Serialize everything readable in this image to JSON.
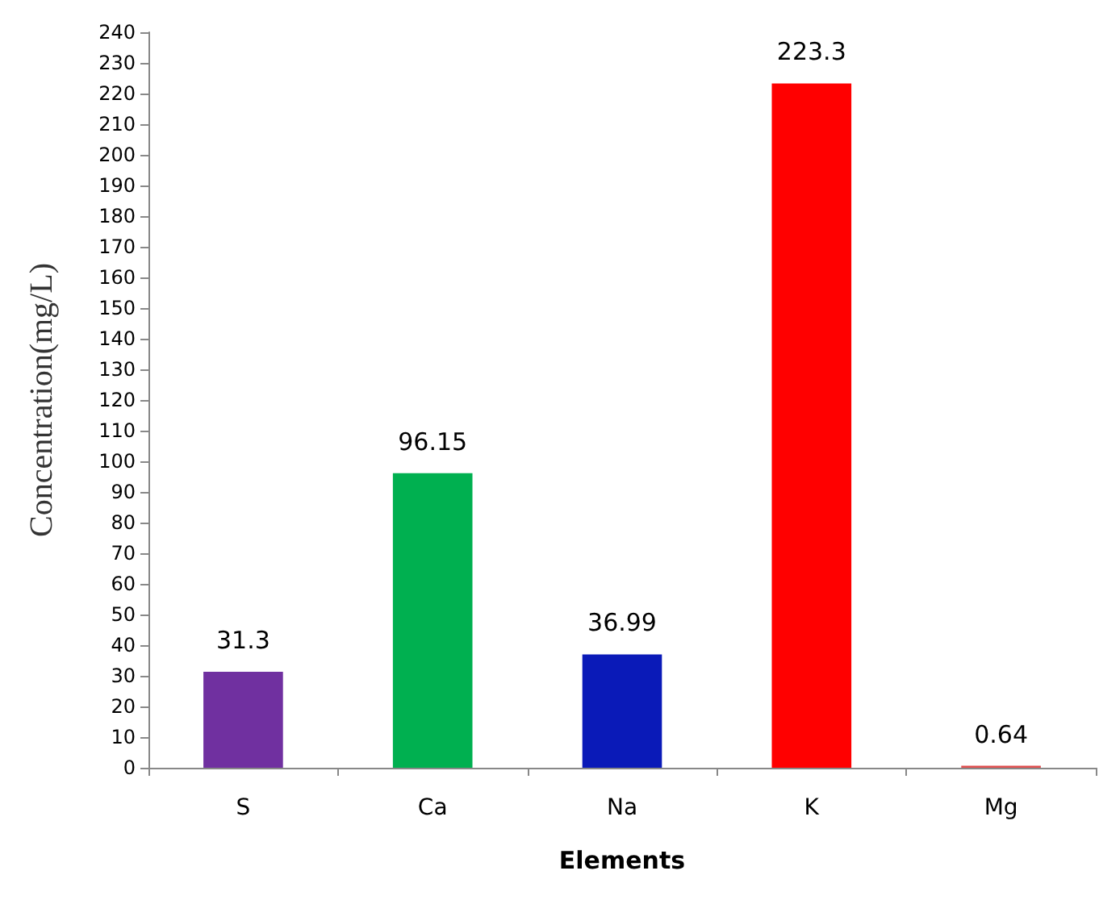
{
  "chart_data": {
    "type": "bar",
    "xlabel": "Elements",
    "ylabel": "Concentration(mg/L)",
    "categories": [
      "S",
      "Ca",
      "Na",
      "K",
      "Mg"
    ],
    "values": [
      31.3,
      96.15,
      36.99,
      223.3,
      0.64
    ],
    "colors": [
      "#7030a0",
      "#00b050",
      "#0a1ab8",
      "#ff0000",
      "#e05050"
    ],
    "value_labels": [
      "31.3",
      "96.15",
      "36.99",
      "223.3",
      "0.64"
    ],
    "ylim": [
      0,
      240
    ],
    "yticks": [
      0,
      10,
      20,
      30,
      40,
      50,
      60,
      70,
      80,
      90,
      100,
      110,
      120,
      130,
      140,
      150,
      160,
      170,
      180,
      190,
      200,
      210,
      220,
      230,
      240
    ],
    "grid": false
  }
}
